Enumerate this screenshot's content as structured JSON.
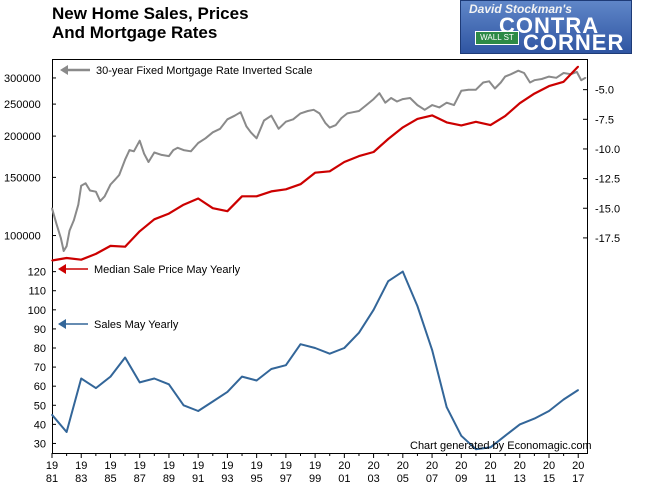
{
  "title": {
    "line1": "New Home Sales, Prices",
    "line2": "And Mortgage Rates"
  },
  "logo": {
    "line1": "David Stockman's",
    "line2": "CONTRA",
    "line3": "CORNER",
    "street_sign": "WALL ST"
  },
  "credit": "Chart generated by Economagic.com",
  "colors": {
    "rate": "#8a8a8a",
    "price": "#cc0000",
    "sales": "#336699"
  },
  "chart_data": {
    "type": "line",
    "x_axis": {
      "range": [
        1981,
        2017.6
      ],
      "tick_labels": [
        [
          "19",
          "81"
        ],
        [
          "19",
          "83"
        ],
        [
          "19",
          "85"
        ],
        [
          "19",
          "87"
        ],
        [
          "19",
          "89"
        ],
        [
          "19",
          "91"
        ],
        [
          "19",
          "93"
        ],
        [
          "19",
          "95"
        ],
        [
          "19",
          "97"
        ],
        [
          "19",
          "99"
        ],
        [
          "20",
          "01"
        ],
        [
          "20",
          "03"
        ],
        [
          "20",
          "05"
        ],
        [
          "20",
          "07"
        ],
        [
          "20",
          "09"
        ],
        [
          "20",
          "11"
        ],
        [
          "20",
          "13"
        ],
        [
          "20",
          "15"
        ],
        [
          "20",
          "17"
        ]
      ]
    },
    "left_axis_price": {
      "scale": "log",
      "range": [
        82000,
        340000
      ],
      "tick_labels": [
        "300000",
        "250000",
        "200000",
        "150000",
        "100000"
      ],
      "tick_values": [
        300000,
        250000,
        200000,
        150000,
        100000
      ]
    },
    "right_axis_rate": {
      "scale": "linear",
      "inverted": true,
      "range": [
        -2.5,
        -19.7
      ],
      "tick_labels": [
        "-5.0",
        "-7.5",
        "-10.0",
        "-12.5",
        "-15.0",
        "-17.5"
      ],
      "tick_values": [
        -5.0,
        -7.5,
        -10.0,
        -12.5,
        -15.0,
        -17.5
      ]
    },
    "left_axis_sales": {
      "scale": "linear",
      "range": [
        25,
        124
      ],
      "tick_labels": [
        "120",
        "110",
        "100",
        "90",
        "80",
        "70",
        "60",
        "50",
        "40",
        "30"
      ],
      "tick_values": [
        120,
        110,
        100,
        90,
        80,
        70,
        60,
        50,
        40,
        30
      ]
    },
    "series": [
      {
        "name": "30-year Fixed Mortgage Rate Inverted Scale",
        "axis": "right",
        "x": [
          1981.0,
          1981.3,
          1981.6,
          1981.8,
          1982.0,
          1982.2,
          1982.5,
          1982.8,
          1983.0,
          1983.3,
          1983.6,
          1984.0,
          1984.3,
          1984.6,
          1985.0,
          1985.3,
          1985.6,
          1986.0,
          1986.3,
          1986.6,
          1987.0,
          1987.3,
          1987.6,
          1988.0,
          1988.5,
          1989.0,
          1989.3,
          1989.6,
          1990.0,
          1990.5,
          1991.0,
          1991.5,
          1992.0,
          1992.5,
          1993.0,
          1993.5,
          1993.9,
          1994.3,
          1994.6,
          1995.0,
          1995.5,
          1996.0,
          1996.5,
          1997.0,
          1997.5,
          1998.0,
          1998.5,
          1998.9,
          1999.3,
          1999.7,
          2000.0,
          2000.4,
          2000.8,
          2001.2,
          2001.6,
          2002.0,
          2002.5,
          2003.0,
          2003.4,
          2003.8,
          2004.2,
          2004.6,
          2005.0,
          2005.5,
          2006.0,
          2006.5,
          2007.0,
          2007.5,
          2008.0,
          2008.5,
          2009.0,
          2009.5,
          2010.0,
          2010.5,
          2010.9,
          2011.3,
          2011.7,
          2012.0,
          2012.4,
          2012.9,
          2013.3,
          2013.7,
          2014.0,
          2014.5,
          2015.0,
          2015.5,
          2016.0,
          2016.5,
          2016.9,
          2017.2,
          2017.5
        ],
        "values": [
          -15.0,
          -16.3,
          -17.5,
          -18.6,
          -18.2,
          -16.9,
          -16.0,
          -14.7,
          -13.1,
          -12.9,
          -13.5,
          -13.6,
          -14.4,
          -14.0,
          -13.0,
          -12.6,
          -12.2,
          -10.9,
          -10.1,
          -10.2,
          -9.3,
          -10.4,
          -11.1,
          -10.3,
          -10.5,
          -10.6,
          -10.1,
          -9.9,
          -10.1,
          -10.2,
          -9.5,
          -9.1,
          -8.6,
          -8.3,
          -7.5,
          -7.2,
          -6.9,
          -8.1,
          -8.6,
          -9.1,
          -7.6,
          -7.2,
          -8.3,
          -7.7,
          -7.5,
          -7.0,
          -6.8,
          -6.7,
          -7.0,
          -7.8,
          -8.2,
          -8.0,
          -7.4,
          -7.0,
          -6.9,
          -6.8,
          -6.3,
          -5.8,
          -5.3,
          -6.1,
          -5.7,
          -6.0,
          -5.8,
          -5.7,
          -6.3,
          -6.7,
          -6.3,
          -6.5,
          -6.1,
          -6.3,
          -5.1,
          -5.0,
          -5.0,
          -4.4,
          -4.3,
          -4.9,
          -4.4,
          -3.9,
          -3.7,
          -3.4,
          -3.6,
          -4.4,
          -4.2,
          -4.1,
          -3.9,
          -4.0,
          -3.6,
          -3.7,
          -3.5,
          -4.2,
          -4.0
        ]
      },
      {
        "name": "Median Sale Price May Yearly",
        "axis": "left-price",
        "x": [
          1981,
          1982,
          1983,
          1984,
          1985,
          1986,
          1987,
          1988,
          1989,
          1990,
          1991,
          1992,
          1993,
          1994,
          1995,
          1996,
          1997,
          1998,
          1999,
          2000,
          2001,
          2002,
          2003,
          2004,
          2005,
          2006,
          2007,
          2008,
          2009,
          2010,
          2011,
          2012,
          2013,
          2014,
          2015,
          2016,
          2017
        ],
        "values": [
          84000,
          85500,
          84500,
          88000,
          93000,
          92500,
          103000,
          112000,
          116500,
          124000,
          129500,
          121000,
          118500,
          131500,
          131500,
          136000,
          138000,
          143000,
          155000,
          156500,
          167000,
          174000,
          179000,
          196000,
          212500,
          225500,
          231000,
          220000,
          215500,
          221000,
          216000,
          230000,
          251500,
          269000,
          283500,
          292000,
          325000
        ]
      },
      {
        "name": "Sales May Yearly",
        "axis": "left-sales",
        "x": [
          1981,
          1982,
          1983,
          1984,
          1985,
          1986,
          1987,
          1988,
          1989,
          1990,
          1991,
          1992,
          1993,
          1994,
          1995,
          1996,
          1997,
          1998,
          1999,
          2000,
          2001,
          2002,
          2003,
          2004,
          2005,
          2006,
          2007,
          2008,
          2009,
          2010,
          2011,
          2012,
          2013,
          2014,
          2015,
          2016,
          2017
        ],
        "values": [
          45,
          36,
          64,
          59,
          65,
          75,
          62,
          64,
          61,
          50,
          47,
          52,
          57,
          65,
          63,
          69,
          71,
          82,
          80,
          77,
          80,
          88,
          100,
          115,
          120,
          102,
          79,
          49,
          34,
          27,
          28,
          34,
          40,
          43,
          47,
          53,
          58
        ]
      }
    ],
    "legend": [
      {
        "label": "30-year Fixed Mortgage Rate Inverted Scale",
        "placement": "top-left",
        "arrow": "left"
      },
      {
        "label": "Median Sale Price May Yearly",
        "placement": "middle-left",
        "arrow": "left"
      },
      {
        "label": "Sales May Yearly",
        "placement": "lower-left",
        "arrow": "left"
      }
    ],
    "grid": false
  }
}
